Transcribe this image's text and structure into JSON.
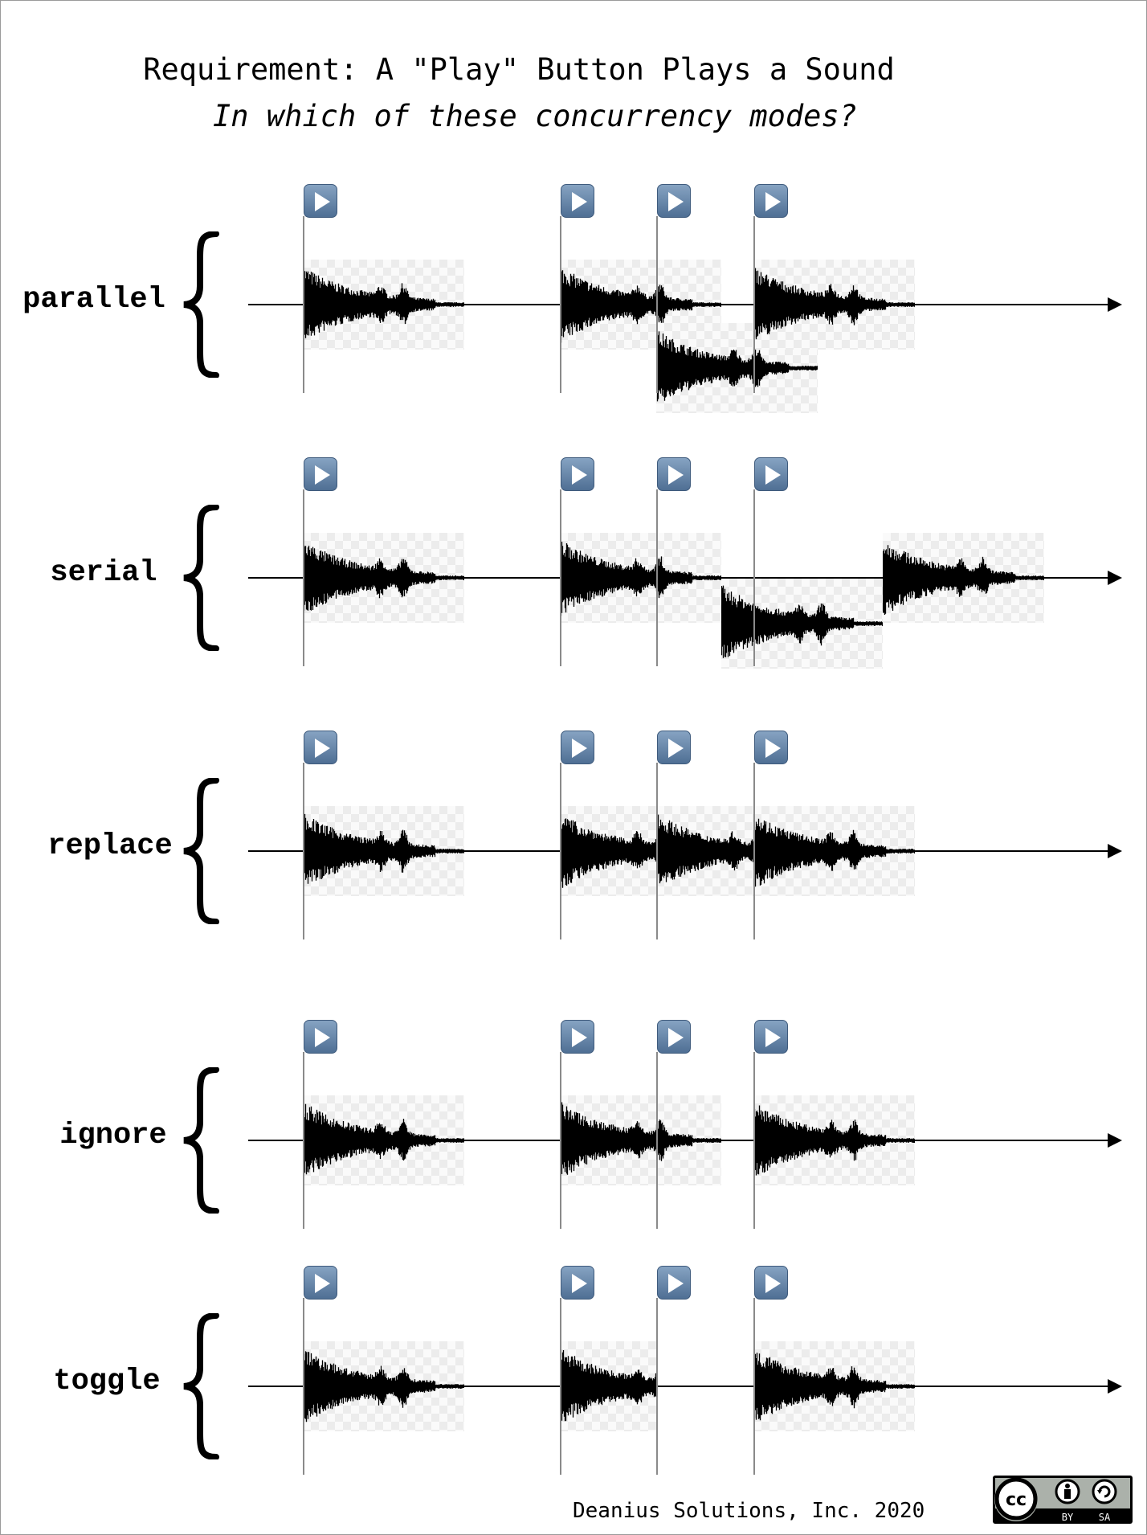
{
  "header": {
    "title": "Requirement: A \"Play\" Button Plays a Sound",
    "subtitle": "In which of these concurrency modes?"
  },
  "clicks_per_row": 4,
  "play_icon": "play-button-icon",
  "colors": {
    "play_button": "#6586ab",
    "waveform": "#000000",
    "marker_line": "#8a8a8a"
  },
  "rows": [
    {
      "label": "parallel",
      "sounds": [
        {
          "start": "click-1",
          "lane": 0
        },
        {
          "start": "click-2",
          "lane": 0
        },
        {
          "start": "click-3",
          "lane": 1
        },
        {
          "start": "click-4",
          "lane": 0
        }
      ]
    },
    {
      "label": "serial",
      "sounds": [
        {
          "start": "click-1",
          "lane": 0
        },
        {
          "start": "click-2",
          "lane": 0
        },
        {
          "start": "after-previous",
          "lane": 1
        },
        {
          "start": "after-previous",
          "lane": 0
        }
      ]
    },
    {
      "label": "replace",
      "sounds": [
        {
          "start": "click-1",
          "lane": 0
        },
        {
          "start": "click-2",
          "lane": 0,
          "stopped_by": "click-3"
        },
        {
          "start": "click-3",
          "lane": 0,
          "stopped_by": "click-4"
        },
        {
          "start": "click-4",
          "lane": 0
        }
      ]
    },
    {
      "label": "ignore",
      "sounds": [
        {
          "start": "click-1",
          "lane": 0
        },
        {
          "start": "click-2",
          "lane": 0
        },
        {
          "start": "click-4",
          "lane": 0
        }
      ]
    },
    {
      "label": "toggle",
      "sounds": [
        {
          "start": "click-1",
          "lane": 0
        },
        {
          "start": "click-2",
          "lane": 0,
          "stopped_by": "click-3",
          "clip_background": true
        },
        {
          "start": "click-4",
          "lane": 0
        }
      ]
    }
  ],
  "footer": {
    "credit": "Deanius Solutions, Inc. 2020",
    "license_badge": {
      "text": "cc",
      "by": "BY",
      "sa": "SA"
    }
  }
}
